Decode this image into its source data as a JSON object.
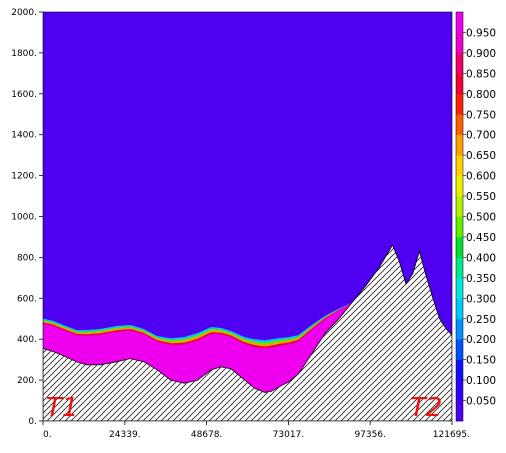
{
  "chart_data": {
    "type": "heatmap",
    "title": "",
    "xlabel": "",
    "ylabel": "",
    "xlim": [
      0,
      121695
    ],
    "ylim": [
      0,
      2000
    ],
    "x_ticks": [
      {
        "value": 0,
        "label": "0."
      },
      {
        "value": 24339,
        "label": "24339."
      },
      {
        "value": 48678,
        "label": "48678."
      },
      {
        "value": 73017,
        "label": "73017."
      },
      {
        "value": 97356,
        "label": "97356."
      },
      {
        "value": 121695,
        "label": "121695."
      }
    ],
    "y_ticks": [
      {
        "value": 0,
        "label": "0."
      },
      {
        "value": 200,
        "label": "200."
      },
      {
        "value": 400,
        "label": "400."
      },
      {
        "value": 600,
        "label": "600."
      },
      {
        "value": 800,
        "label": "800."
      },
      {
        "value": 1000,
        "label": "1000."
      },
      {
        "value": 1200,
        "label": "1200."
      },
      {
        "value": 1400,
        "label": "1400."
      },
      {
        "value": 1600,
        "label": "1600."
      },
      {
        "value": 1800,
        "label": "1800."
      },
      {
        "value": 2000,
        "label": "2000."
      }
    ],
    "background_color": "#5000f0",
    "mixed_layer_color": "#ee00ee",
    "terrain": {
      "x": [
        0,
        3000,
        6000,
        10000,
        13000,
        17000,
        22000,
        26000,
        30000,
        34000,
        38000,
        42000,
        46000,
        50000,
        53000,
        56000,
        60000,
        63000,
        66000,
        68000,
        70000,
        73000,
        76000,
        80000,
        84000,
        88000,
        92000,
        96000,
        100000,
        104000,
        106000,
        108000,
        110000,
        112000,
        114000,
        116000,
        118000,
        120000,
        121695
      ],
      "y": [
        355,
        340,
        320,
        290,
        275,
        275,
        290,
        305,
        290,
        250,
        200,
        185,
        200,
        250,
        265,
        255,
        200,
        160,
        140,
        145,
        165,
        190,
        230,
        330,
        430,
        500,
        580,
        660,
        750,
        860,
        780,
        670,
        720,
        830,
        710,
        600,
        500,
        450,
        420
      ]
    },
    "top": {
      "x": [
        0,
        3000,
        6000,
        10000,
        13000,
        17000,
        22000,
        26000,
        30000,
        34000,
        38000,
        42000,
        46000,
        50000,
        53000,
        56000,
        60000,
        63000,
        66000,
        68000,
        70000,
        73000,
        76000,
        80000,
        84000,
        88000,
        92000
      ],
      "y": [
        500,
        490,
        470,
        445,
        445,
        450,
        465,
        470,
        450,
        415,
        405,
        410,
        430,
        460,
        455,
        440,
        410,
        400,
        395,
        400,
        405,
        410,
        420,
        470,
        515,
        550,
        580
      ]
    },
    "colorbar": {
      "ticks": [
        "0.050",
        "0.100",
        "0.150",
        "0.200",
        "0.250",
        "0.300",
        "0.350",
        "0.400",
        "0.450",
        "0.500",
        "0.550",
        "0.600",
        "0.650",
        "0.700",
        "0.750",
        "0.800",
        "0.850",
        "0.900",
        "0.950"
      ],
      "colors": [
        "#5000f0",
        "#3000ff",
        "#1010ff",
        "#0050ff",
        "#0090ff",
        "#00c8ff",
        "#00e8e0",
        "#00e890",
        "#00e030",
        "#60f000",
        "#b0f000",
        "#e8f000",
        "#ffd000",
        "#ffa000",
        "#ff6000",
        "#ff2000",
        "#ee0033",
        "#f0006a",
        "#ee00cc",
        "#ee00ee"
      ]
    },
    "annotations": [
      "T1",
      "T2"
    ]
  }
}
